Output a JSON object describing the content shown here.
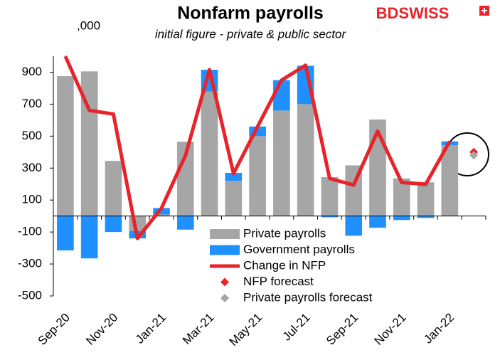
{
  "chart_data": {
    "type": "bar",
    "title": "Nonfarm payrolls",
    "subtitle": "initial figure - private & public sector",
    "unit_label": ",000",
    "logo": "BDSWISS",
    "categories": [
      "Sep-20",
      null,
      "Nov-20",
      null,
      "Jan-21",
      null,
      "Mar-21",
      null,
      "May-21",
      null,
      "Jul-21",
      null,
      "Sep-21",
      null,
      "Nov-21",
      null,
      "Jan-22",
      null
    ],
    "series": [
      {
        "name": "Private payrolls",
        "type": "bar",
        "color": "#a6a6a6",
        "values": [
          875,
          905,
          345,
          -95,
          10,
          465,
          780,
          220,
          500,
          660,
          700,
          243,
          317,
          604,
          235,
          211,
          444,
          null
        ]
      },
      {
        "name": "Government payrolls",
        "type": "bar",
        "color": "#1e90ff",
        "values": [
          -215,
          -265,
          -100,
          -45,
          40,
          -85,
          135,
          50,
          60,
          190,
          240,
          -8,
          -123,
          -73,
          -25,
          -12,
          23,
          null
        ]
      },
      {
        "name": "Change in NFP",
        "type": "line",
        "color": "#e8242b",
        "values": [
          1000,
          661,
          638,
          -140,
          49,
          379,
          916,
          266,
          559,
          850,
          943,
          235,
          194,
          531,
          210,
          199,
          467,
          null
        ]
      },
      {
        "name": "NFP forecast",
        "type": "marker",
        "color": "#e8242b",
        "values": [
          null,
          null,
          null,
          null,
          null,
          null,
          null,
          null,
          null,
          null,
          null,
          null,
          null,
          null,
          null,
          null,
          null,
          400
        ]
      },
      {
        "name": "Private payrolls forecast",
        "type": "marker",
        "color": "#a6a6a6",
        "values": [
          null,
          null,
          null,
          null,
          null,
          null,
          null,
          null,
          null,
          null,
          null,
          null,
          null,
          null,
          null,
          null,
          null,
          380
        ]
      }
    ],
    "ylim": [
      -500,
      1000
    ],
    "yticks": [
      -500,
      -300,
      -100,
      100,
      300,
      500,
      700,
      900
    ],
    "grid": false
  }
}
